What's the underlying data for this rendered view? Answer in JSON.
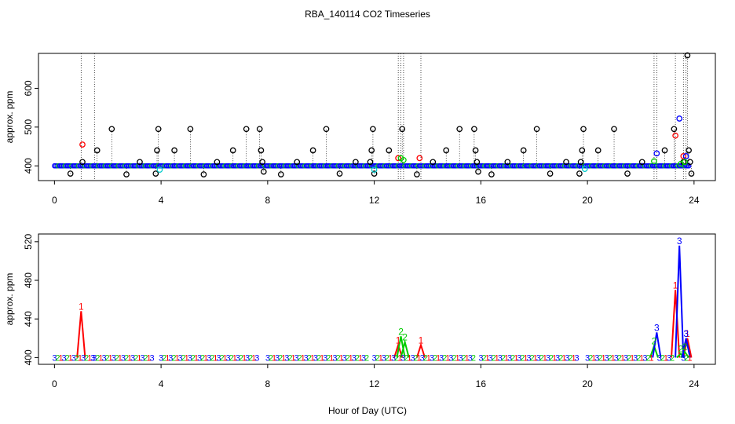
{
  "title": "RBA_140114  CO2 Timeseries",
  "colors": {
    "black": "#000000",
    "red": "#ff0000",
    "green": "#00cc00",
    "blue": "#0000ff",
    "cyan": "#00cccc"
  },
  "chart_data": [
    {
      "type": "scatter",
      "panel": "top",
      "ylabel": "approx. ppm",
      "xlabel": "",
      "xlim": [
        -0.6,
        24.8
      ],
      "ylim": [
        362,
        690
      ],
      "x_ticks": [
        "0",
        "4",
        "8",
        "12",
        "16",
        "20",
        "24"
      ],
      "y_ticks": [
        "400",
        "500",
        "600"
      ],
      "baseline": {
        "x_start": 0.0,
        "x_end": 23.8,
        "step": 0.05,
        "value": 400
      },
      "spikes": [
        1.0,
        1.5,
        12.9,
        13.0,
        13.1,
        13.75,
        22.5,
        22.6,
        23.3,
        23.6,
        23.7
      ],
      "series": [
        {
          "name": "black",
          "color": "black",
          "points": [
            [
              0.6,
              380
            ],
            [
              1.05,
              410
            ],
            [
              1.6,
              440
            ],
            [
              2.15,
              495
            ],
            [
              2.7,
              378
            ],
            [
              3.2,
              410
            ],
            [
              3.8,
              380
            ],
            [
              3.85,
              440
            ],
            [
              3.9,
              495
            ],
            [
              4.5,
              440
            ],
            [
              5.1,
              495
            ],
            [
              5.6,
              378
            ],
            [
              6.1,
              410
            ],
            [
              6.7,
              440
            ],
            [
              7.2,
              495
            ],
            [
              7.7,
              495
            ],
            [
              7.75,
              440
            ],
            [
              7.8,
              410
            ],
            [
              7.85,
              385
            ],
            [
              8.5,
              378
            ],
            [
              9.1,
              410
            ],
            [
              9.7,
              440
            ],
            [
              10.2,
              495
            ],
            [
              10.7,
              380
            ],
            [
              11.3,
              410
            ],
            [
              11.85,
              410
            ],
            [
              11.9,
              440
            ],
            [
              11.95,
              495
            ],
            [
              12.0,
              380
            ],
            [
              12.55,
              440
            ],
            [
              13.05,
              495
            ],
            [
              13.6,
              378
            ],
            [
              14.2,
              410
            ],
            [
              14.7,
              440
            ],
            [
              15.2,
              495
            ],
            [
              15.75,
              495
            ],
            [
              15.8,
              440
            ],
            [
              15.85,
              410
            ],
            [
              15.9,
              385
            ],
            [
              16.4,
              378
            ],
            [
              17.0,
              410
            ],
            [
              17.6,
              440
            ],
            [
              18.1,
              495
            ],
            [
              18.6,
              380
            ],
            [
              19.2,
              410
            ],
            [
              19.75,
              410
            ],
            [
              19.8,
              440
            ],
            [
              19.85,
              495
            ],
            [
              19.7,
              380
            ],
            [
              20.4,
              440
            ],
            [
              21.0,
              495
            ],
            [
              21.5,
              380
            ],
            [
              22.05,
              410
            ],
            [
              22.9,
              440
            ],
            [
              23.25,
              495
            ],
            [
              23.6,
              410
            ],
            [
              23.75,
              685
            ],
            [
              23.8,
              440
            ],
            [
              23.85,
              410
            ],
            [
              23.9,
              380
            ]
          ]
        },
        {
          "name": "red",
          "color": "red",
          "points": [
            [
              1.05,
              455
            ],
            [
              12.9,
              420
            ],
            [
              13.7,
              420
            ],
            [
              23.3,
              478
            ],
            [
              23.6,
              425
            ]
          ]
        },
        {
          "name": "blue",
          "color": "blue",
          "points": [
            [
              22.6,
              432
            ],
            [
              23.45,
              522
            ],
            [
              23.7,
              425
            ]
          ]
        },
        {
          "name": "green",
          "color": "green",
          "points": [
            [
              13.0,
              420
            ],
            [
              13.1,
              415
            ],
            [
              22.5,
              412
            ],
            [
              23.5,
              405
            ],
            [
              23.65,
              410
            ]
          ]
        },
        {
          "name": "cyan",
          "color": "cyan",
          "points": [
            [
              3.95,
              390
            ],
            [
              12.0,
              390
            ],
            [
              19.9,
              392
            ]
          ]
        }
      ]
    },
    {
      "type": "line",
      "panel": "bottom",
      "ylabel": "approx. ppm",
      "xlabel": "Hour of Day (UTC)",
      "xlim": [
        -0.6,
        24.8
      ],
      "ylim": [
        393,
        528
      ],
      "x_ticks": [
        "0",
        "4",
        "8",
        "12",
        "16",
        "20",
        "24"
      ],
      "y_ticks": [
        "400",
        "440",
        "480",
        "520"
      ],
      "baseline_segments": [
        [
          0,
          1.5
        ],
        [
          1.5,
          3.7
        ],
        [
          4.0,
          7.7
        ],
        [
          8.0,
          11.8
        ],
        [
          12.0,
          15.8
        ],
        [
          16.0,
          19.7
        ],
        [
          20.0,
          22.5
        ],
        [
          22.7,
          23.2
        ],
        [
          23.6,
          23.9
        ]
      ],
      "label_step": 0.12,
      "series": [
        {
          "name": "1",
          "color": "red",
          "label": "1",
          "peaks": [
            [
              1.0,
              448
            ],
            [
              12.9,
              413
            ],
            [
              13.75,
              413
            ],
            [
              23.3,
              470
            ],
            [
              23.75,
              420
            ]
          ]
        },
        {
          "name": "2",
          "color": "green",
          "label": "2",
          "peaks": [
            [
              13.0,
              422
            ],
            [
              13.15,
              416
            ],
            [
              22.5,
              412
            ],
            [
              23.5,
              404
            ],
            [
              23.65,
              406
            ]
          ]
        },
        {
          "name": "3",
          "color": "blue",
          "label": "3",
          "peaks": [
            [
              22.6,
              426
            ],
            [
              23.45,
              516
            ],
            [
              23.7,
              420
            ]
          ]
        }
      ]
    }
  ]
}
